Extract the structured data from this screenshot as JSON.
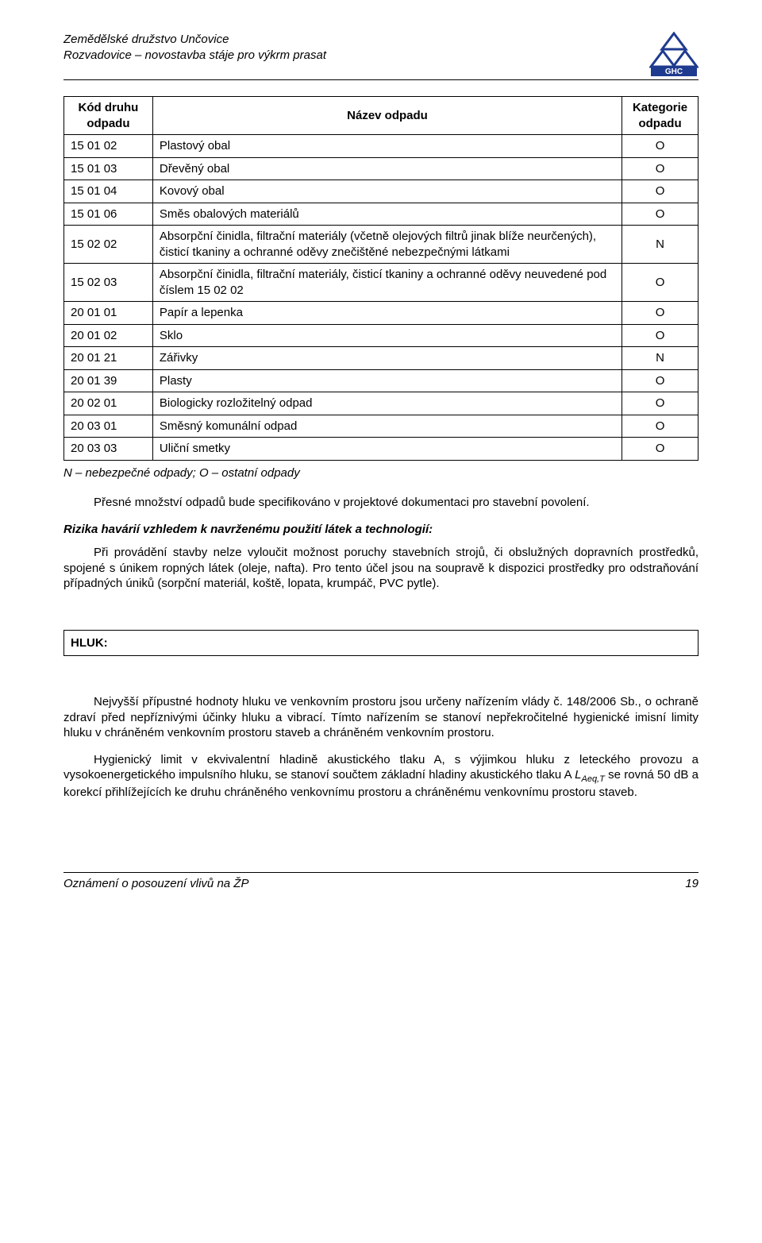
{
  "colors": {
    "text": "#000000",
    "background": "#ffffff",
    "border": "#000000",
    "logo_blue": "#1f3b8f"
  },
  "header": {
    "line1": "Zemědělské družstvo Unčovice",
    "line2": "Rozvadovice – novostavba stáje pro výkrm prasat",
    "logo_text": "GHC"
  },
  "table": {
    "columns": [
      {
        "label": "Kód druhu odpadu",
        "width_pct": 14
      },
      {
        "label": "Název odpadu",
        "width_pct": 74
      },
      {
        "label": "Kategorie odpadu",
        "width_pct": 12
      }
    ],
    "rows": [
      {
        "code": "15 01 02",
        "desc": "Plastový obal",
        "cat": "O"
      },
      {
        "code": "15 01 03",
        "desc": "Dřevěný obal",
        "cat": "O"
      },
      {
        "code": "15 01 04",
        "desc": "Kovový obal",
        "cat": "O"
      },
      {
        "code": "15 01 06",
        "desc": "Směs obalových materiálů",
        "cat": "O"
      },
      {
        "code": "15 02 02",
        "desc": "Absorpční činidla, filtrační materiály (včetně olejových filtrů jinak blíže neurčených), čisticí tkaniny a ochranné oděvy znečištěné nebezpečnými látkami",
        "cat": "N"
      },
      {
        "code": "15 02 03",
        "desc": "Absorpční činidla, filtrační materiály, čisticí tkaniny a ochranné oděvy neuvedené pod číslem 15 02 02",
        "cat": "O"
      },
      {
        "code": "20 01 01",
        "desc": "Papír a lepenka",
        "cat": "O"
      },
      {
        "code": "20 01 02",
        "desc": "Sklo",
        "cat": "O"
      },
      {
        "code": "20 01 21",
        "desc": "Zářivky",
        "cat": "N"
      },
      {
        "code": "20 01 39",
        "desc": "Plasty",
        "cat": "O"
      },
      {
        "code": "20 02 01",
        "desc": "Biologicky rozložitelný odpad",
        "cat": "O"
      },
      {
        "code": "20 03 01",
        "desc": "Směsný komunální odpad",
        "cat": "O"
      },
      {
        "code": "20 03 03",
        "desc": "Uliční smetky",
        "cat": "O"
      }
    ],
    "note": "N – nebezpečné odpady; O – ostatní odpady"
  },
  "paragraphs": {
    "p1": "Přesné množství odpadů bude specifikováno v projektové dokumentaci pro stavební povolení.",
    "sub1": "Rizika havárií vzhledem k navrženému použití látek a technologií:",
    "p2": "Při provádění stavby nelze vyloučit možnost poruchy stavebních strojů, či obslužných dopravních prostředků, spojené s únikem ropných látek (oleje, nafta). Pro tento účel jsou na soupravě k dispozici prostředky pro odstraňování případných úniků (sorpční materiál, koště, lopata, krumpáč, PVC pytle).",
    "section": "HLUK:",
    "p3": "Nejvyšší přípustné hodnoty hluku ve venkovním prostoru jsou určeny nařízením vlády č. 148/2006 Sb., o ochraně zdraví před nepříznivými účinky hluku a vibrací. Tímto nařízením se stanoví nepřekročitelné hygienické imisní limity hluku v chráněném venkovním prostoru staveb a chráněném venkovním prostoru.",
    "p4_prefix": "Hygienický limit v ekvivalentní hladině akustického tlaku A, s výjimkou hluku z leteckého provozu a vysokoenergetického impulsního hluku, se stanoví součtem základní hladiny akustického tlaku A ",
    "p4_laeq_base": "L",
    "p4_laeq_sub": "Aeq,T",
    "p4_suffix": " se rovná 50 dB a korekcí přihlížejících ke druhu chráněného venkovnímu prostoru a chráněnému venkovnímu prostoru staveb."
  },
  "footer": {
    "left": "Oznámení o posouzení vlivů na ŽP",
    "page": "19"
  }
}
